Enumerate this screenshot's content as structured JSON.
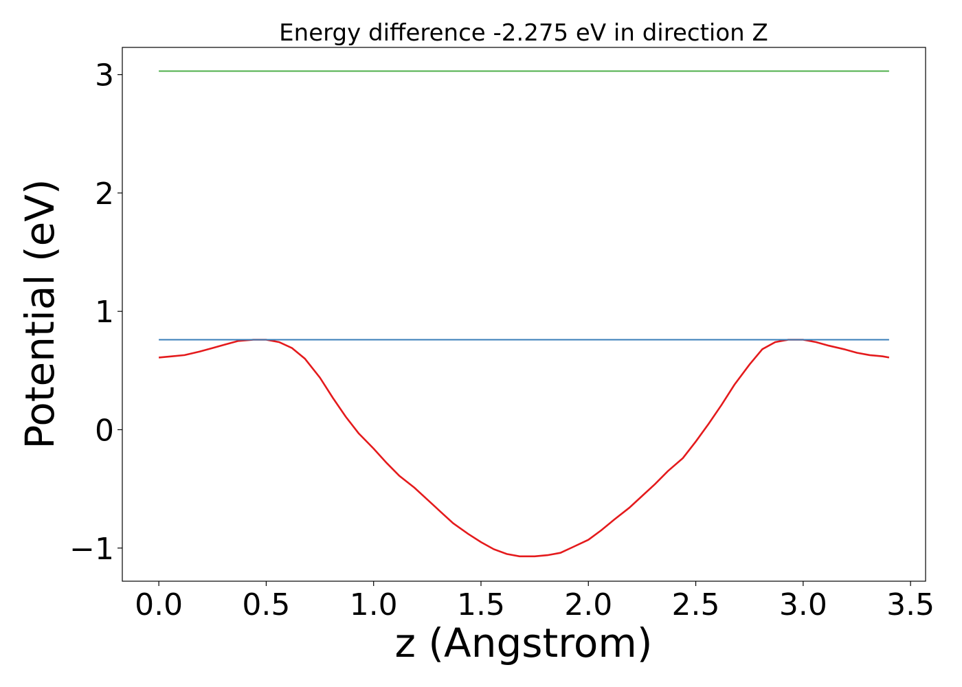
{
  "chart_data": {
    "type": "line",
    "title": "Energy difference -2.275 eV in direction Z",
    "xlabel": "z (Angstrom)",
    "ylabel": "Potential (eV)",
    "xlim": [
      -0.17,
      3.57
    ],
    "ylim": [
      -1.28,
      3.23
    ],
    "xticks": [
      0.0,
      0.5,
      1.0,
      1.5,
      2.0,
      2.5,
      3.0,
      3.5
    ],
    "xtick_labels": [
      "0.0",
      "0.5",
      "1.0",
      "1.5",
      "2.0",
      "2.5",
      "3.0",
      "3.5"
    ],
    "yticks": [
      -1,
      0,
      1,
      2,
      3
    ],
    "ytick_labels": [
      "−1",
      "0",
      "1",
      "2",
      "3"
    ],
    "grid": false,
    "legend": "none",
    "series": [
      {
        "color": "#e41a1c",
        "x": [
          0.0,
          0.06,
          0.12,
          0.19,
          0.25,
          0.31,
          0.37,
          0.44,
          0.5,
          0.56,
          0.62,
          0.68,
          0.75,
          0.81,
          0.87,
          0.93,
          1.0,
          1.06,
          1.12,
          1.19,
          1.25,
          1.31,
          1.37,
          1.44,
          1.5,
          1.56,
          1.62,
          1.68,
          1.75,
          1.81,
          1.87,
          1.93,
          2.0,
          2.06,
          2.12,
          2.19,
          2.25,
          2.31,
          2.37,
          2.44,
          2.5,
          2.56,
          2.62,
          2.68,
          2.75,
          2.81,
          2.87,
          2.93,
          3.0,
          3.06,
          3.12,
          3.19,
          3.25,
          3.31,
          3.37,
          3.4
        ],
        "y": [
          0.61,
          0.62,
          0.63,
          0.66,
          0.69,
          0.72,
          0.75,
          0.76,
          0.76,
          0.74,
          0.69,
          0.6,
          0.44,
          0.27,
          0.11,
          -0.03,
          -0.16,
          -0.28,
          -0.39,
          -0.49,
          -0.59,
          -0.69,
          -0.79,
          -0.88,
          -0.95,
          -1.01,
          -1.05,
          -1.07,
          -1.07,
          -1.06,
          -1.04,
          -0.99,
          -0.93,
          -0.85,
          -0.76,
          -0.66,
          -0.56,
          -0.46,
          -0.35,
          -0.24,
          -0.1,
          0.05,
          0.21,
          0.38,
          0.55,
          0.68,
          0.74,
          0.76,
          0.76,
          0.74,
          0.71,
          0.68,
          0.65,
          0.63,
          0.62,
          0.61
        ]
      },
      {
        "color": "#377eb8",
        "x": [
          0.0,
          3.4
        ],
        "y": [
          0.76,
          0.76
        ]
      },
      {
        "color": "#4daf4a",
        "x": [
          0.0,
          3.4
        ],
        "y": [
          3.03,
          3.03
        ]
      }
    ]
  }
}
